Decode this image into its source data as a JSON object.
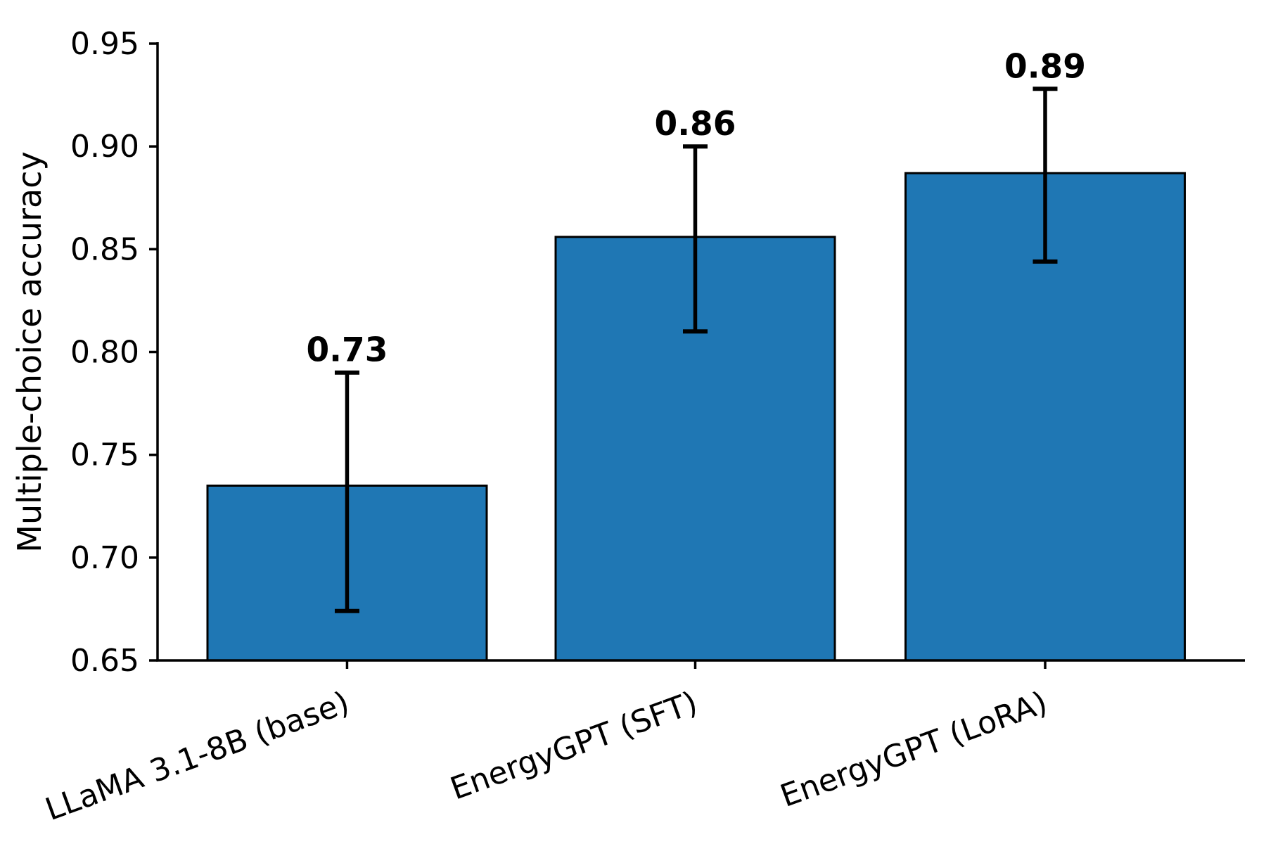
{
  "figure": {
    "background": "#ffffff"
  },
  "chart_data": {
    "type": "bar",
    "categories": [
      "LLaMA 3.1-8B (base)",
      "EnergyGPT (SFT)",
      "EnergyGPT (LoRA)"
    ],
    "values": [
      0.735,
      0.856,
      0.887
    ],
    "bar_labels": [
      "0.73",
      "0.86",
      "0.89"
    ],
    "error_upper": [
      0.79,
      0.9,
      0.928
    ],
    "error_lower": [
      0.674,
      0.81,
      0.844
    ],
    "title": "",
    "xlabel": "",
    "ylabel": "Multiple-choice accuracy",
    "ylim": [
      0.65,
      0.95
    ],
    "yticks": [
      0.65,
      0.7,
      0.75,
      0.8,
      0.85,
      0.9,
      0.95
    ],
    "ytick_labels": [
      "0.65",
      "0.70",
      "0.75",
      "0.80",
      "0.85",
      "0.90",
      "0.95"
    ],
    "grid": false,
    "legend": "none",
    "bar_color": "#1f77b4",
    "bar_edge_color": "#000000",
    "error_color": "#000000",
    "axis_color": "#000000",
    "tick_label_rotation_deg": 20
  }
}
